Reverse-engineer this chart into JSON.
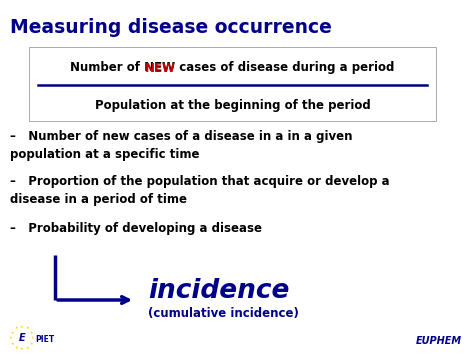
{
  "title": "Measuring disease occurrence",
  "title_color": "#00008B",
  "title_fontsize": 13.5,
  "bg_color": "#FFFFFF",
  "num_pre": "Number of ",
  "num_new": "NEW",
  "num_post": " cases of disease during a period",
  "denominator": "Population at the beginning of the period",
  "new_color": "#CC0000",
  "text_color": "#000000",
  "box_edge_color": "#AAAAAA",
  "divider_color": "#000080",
  "bullet1a": "–   Number of new cases of a disease in a in a given",
  "bullet1b": "population at a specific time",
  "bullet2a": "–   Proportion of the population that acquire or develop a",
  "bullet2b": "disease in a period of time",
  "bullet3": "–   Probability of developing a disease",
  "bullet_fontsize": 8.5,
  "bullet_color": "#000000",
  "incidence_text": "incidence",
  "incidence_color": "#00008B",
  "incidence_fontsize": 19,
  "cumulative_text": "(cumulative incidence)",
  "cumulative_color": "#00008B",
  "cumulative_fontsize": 8.5,
  "arrow_color": "#00008B",
  "logo_color": "#00008B",
  "star_color": "#FFD700",
  "euphem_text": "EUPHEM",
  "epiet_E": "E",
  "epiet_rest": "PIET"
}
